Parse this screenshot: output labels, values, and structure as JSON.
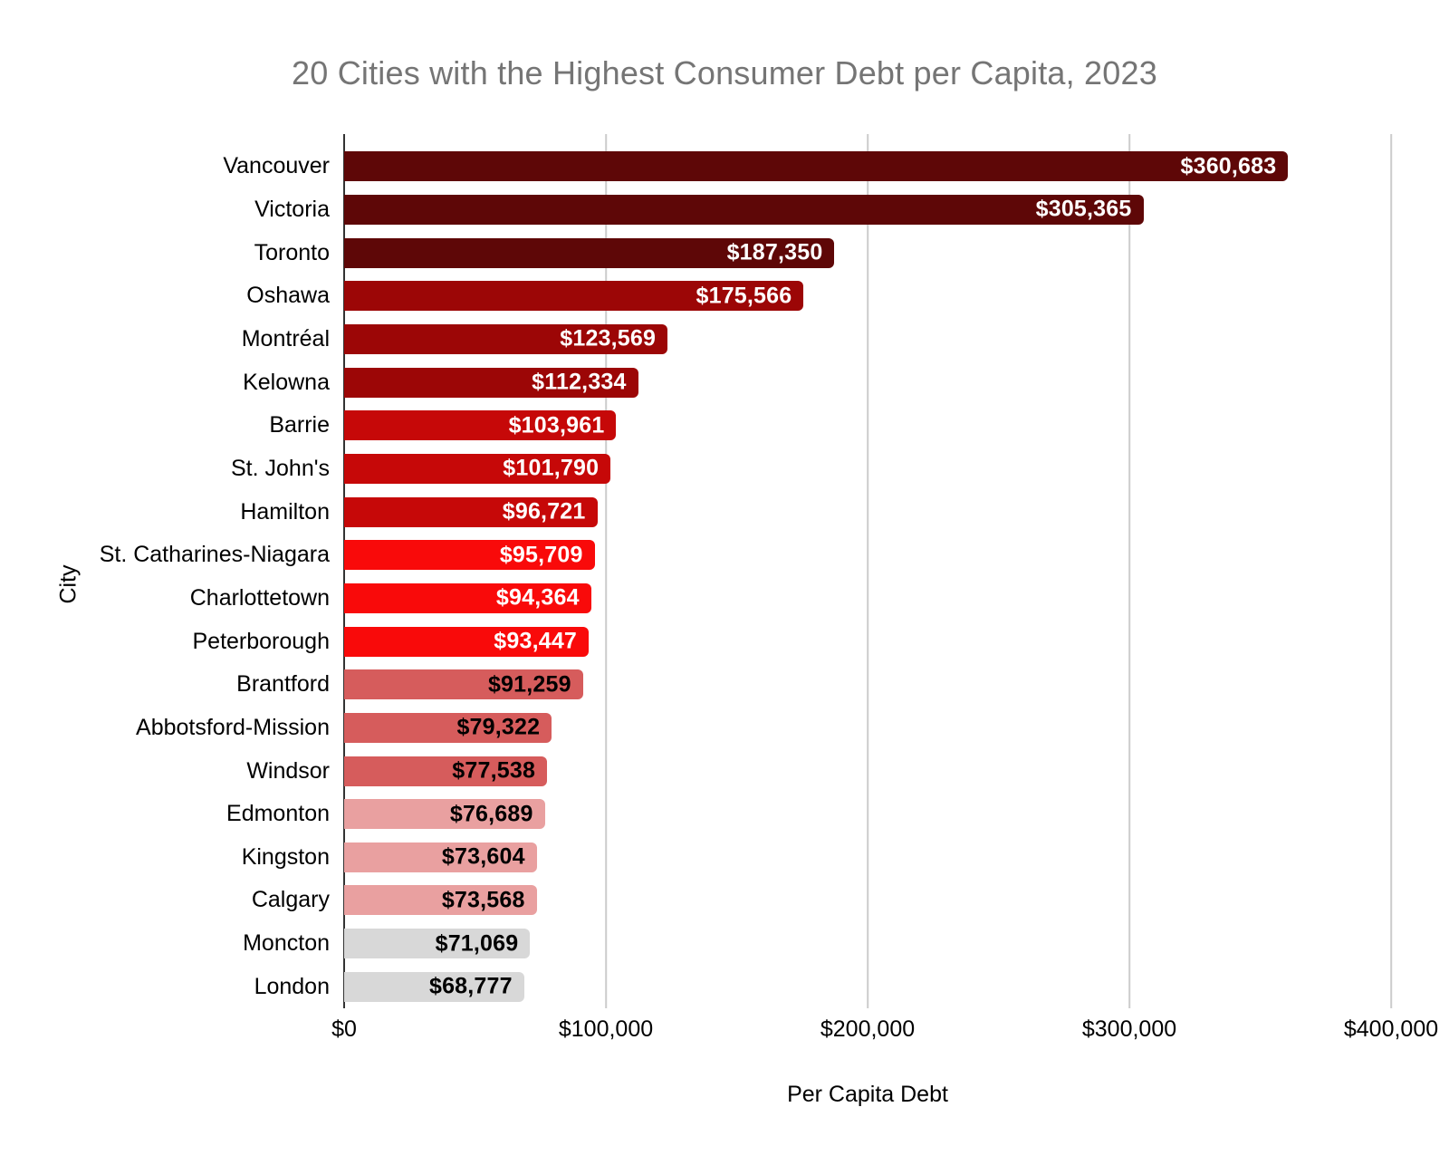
{
  "chart_data": {
    "type": "bar",
    "orientation": "horizontal",
    "title": "20 Cities with the Highest Consumer Debt per Capita, 2023",
    "xlabel": "Per Capita Debt",
    "ylabel": "City",
    "xlim": [
      0,
      400000
    ],
    "grid": true,
    "x_ticks": [
      {
        "value": 0,
        "label": "$0"
      },
      {
        "value": 100000,
        "label": "$100,000"
      },
      {
        "value": 200000,
        "label": "$200,000"
      },
      {
        "value": 300000,
        "label": "$300,000"
      },
      {
        "value": 400000,
        "label": "$400,000"
      }
    ],
    "bars": [
      {
        "city": "Vancouver",
        "value": 360683,
        "label": "$360,683",
        "color": "#5E0707",
        "label_color": "#FFFFFF"
      },
      {
        "city": "Victoria",
        "value": 305365,
        "label": "$305,365",
        "color": "#5E0707",
        "label_color": "#FFFFFF"
      },
      {
        "city": "Toronto",
        "value": 187350,
        "label": "$187,350",
        "color": "#5E0707",
        "label_color": "#FFFFFF"
      },
      {
        "city": "Oshawa",
        "value": 175566,
        "label": "$175,566",
        "color": "#9C0606",
        "label_color": "#FFFFFF"
      },
      {
        "city": "Montréal",
        "value": 123569,
        "label": "$123,569",
        "color": "#9C0606",
        "label_color": "#FFFFFF"
      },
      {
        "city": "Kelowna",
        "value": 112334,
        "label": "$112,334",
        "color": "#9C0606",
        "label_color": "#FFFFFF"
      },
      {
        "city": "Barrie",
        "value": 103961,
        "label": "$103,961",
        "color": "#C60808",
        "label_color": "#FFFFFF"
      },
      {
        "city": "St. John's",
        "value": 101790,
        "label": "$101,790",
        "color": "#C60808",
        "label_color": "#FFFFFF"
      },
      {
        "city": "Hamilton",
        "value": 96721,
        "label": "$96,721",
        "color": "#C60808",
        "label_color": "#FFFFFF"
      },
      {
        "city": "St. Catharines-Niagara",
        "value": 95709,
        "label": "$95,709",
        "color": "#F90A0A",
        "label_color": "#FFFFFF"
      },
      {
        "city": "Charlottetown",
        "value": 94364,
        "label": "$94,364",
        "color": "#F90A0A",
        "label_color": "#FFFFFF"
      },
      {
        "city": "Peterborough",
        "value": 93447,
        "label": "$93,447",
        "color": "#F90A0A",
        "label_color": "#FFFFFF"
      },
      {
        "city": "Brantford",
        "value": 91259,
        "label": "$91,259",
        "color": "#D65C5C",
        "label_color": "#000000"
      },
      {
        "city": "Abbotsford-Mission",
        "value": 79322,
        "label": "$79,322",
        "color": "#D65C5C",
        "label_color": "#000000"
      },
      {
        "city": "Windsor",
        "value": 77538,
        "label": "$77,538",
        "color": "#D65C5C",
        "label_color": "#000000"
      },
      {
        "city": "Edmonton",
        "value": 76689,
        "label": "$76,689",
        "color": "#E9A0A0",
        "label_color": "#000000"
      },
      {
        "city": "Kingston",
        "value": 73604,
        "label": "$73,604",
        "color": "#E9A0A0",
        "label_color": "#000000"
      },
      {
        "city": "Calgary",
        "value": 73568,
        "label": "$73,568",
        "color": "#E9A0A0",
        "label_color": "#000000"
      },
      {
        "city": "Moncton",
        "value": 71069,
        "label": "$71,069",
        "color": "#D8D8D8",
        "label_color": "#000000"
      },
      {
        "city": "London",
        "value": 68777,
        "label": "$68,777",
        "color": "#D8D8D8",
        "label_color": "#000000"
      }
    ]
  },
  "style": {
    "background": "#FFFFFF",
    "title_color": "#757575",
    "text_color": "#000000",
    "gridline_color": "#CCCCCC",
    "axis_line_color": "#333333"
  }
}
